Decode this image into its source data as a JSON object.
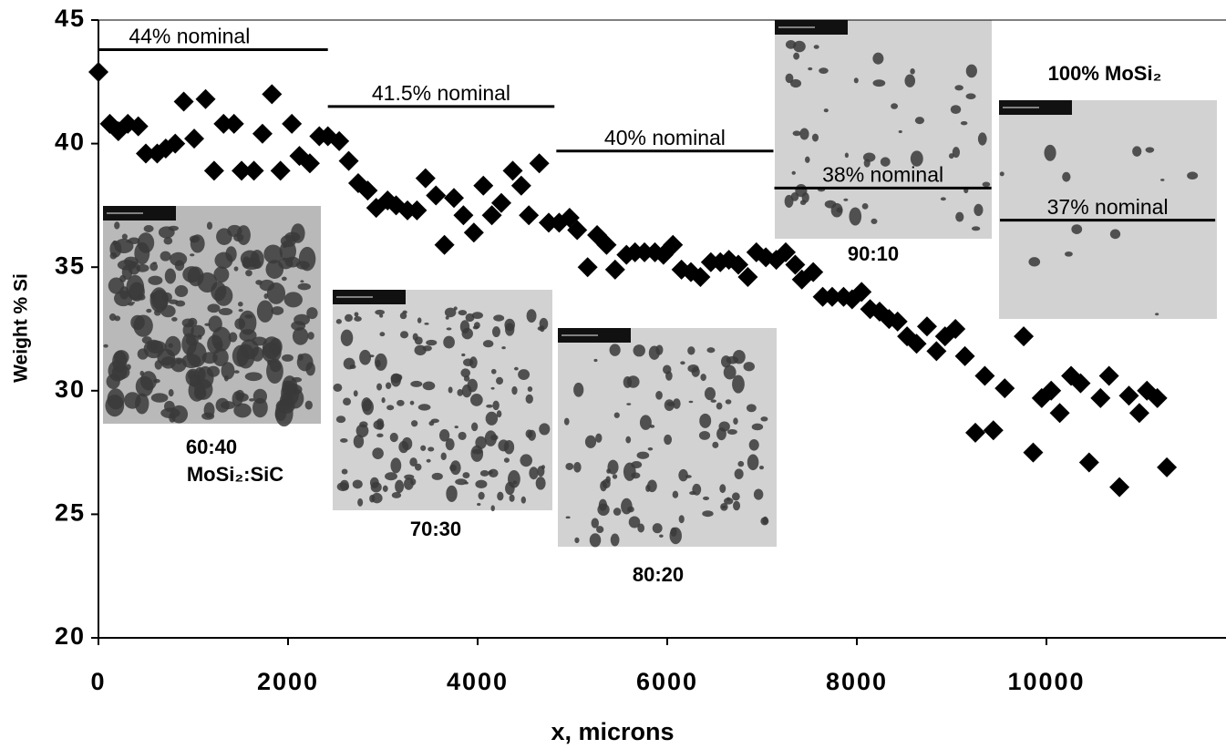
{
  "chart_data": {
    "type": "scatter",
    "x_label": "x, microns",
    "y_label": "Weight % Si",
    "xlim": [
      0,
      11894
    ],
    "ylim": [
      20,
      45
    ],
    "xticks": [
      0,
      2000,
      4000,
      6000,
      8000,
      10000
    ],
    "yticks": [
      20,
      25,
      30,
      35,
      40,
      45
    ],
    "series": [
      {
        "color": "#000000",
        "x": [
          0,
          120,
          210,
          310,
          420,
          500,
          620,
          710,
          810,
          900,
          1010,
          1130,
          1220,
          1320,
          1430,
          1510,
          1640,
          1730,
          1830,
          1920,
          2040,
          2120,
          2230,
          2330,
          2420,
          2540,
          2640,
          2740,
          2840,
          2930,
          3050,
          3140,
          3260,
          3360,
          3450,
          3560,
          3650,
          3750,
          3850,
          3960,
          4060,
          4150,
          4250,
          4370,
          4460,
          4540,
          4650,
          4750,
          4860,
          4970,
          5050,
          5160,
          5260,
          5360,
          5450,
          5570,
          5660,
          5760,
          5870,
          5960,
          6060,
          6150,
          6250,
          6350,
          6460,
          6560,
          6650,
          6750,
          6850,
          6940,
          7040,
          7150,
          7250,
          7350,
          7420,
          7540,
          7640,
          7740,
          7860,
          7950,
          8050,
          8140,
          8240,
          8340,
          8430,
          8530,
          8630,
          8740,
          8840,
          8930,
          9040,
          9140,
          9250,
          9350,
          9440,
          9560,
          9760,
          9860,
          9950,
          10050,
          10140,
          10260,
          10360,
          10450,
          10570,
          10660,
          10770,
          10870,
          10980,
          11060,
          11170,
          11270
        ],
        "values": [
          42.9,
          40.8,
          40.5,
          40.8,
          40.7,
          39.6,
          39.6,
          39.8,
          40.0,
          41.7,
          40.2,
          41.8,
          38.9,
          40.8,
          40.8,
          38.9,
          38.9,
          40.4,
          42.0,
          38.9,
          40.8,
          39.5,
          39.2,
          40.3,
          40.3,
          40.1,
          39.3,
          38.4,
          38.1,
          37.4,
          37.7,
          37.5,
          37.3,
          37.3,
          38.6,
          37.9,
          35.9,
          37.8,
          37.1,
          36.4,
          38.3,
          37.1,
          37.6,
          38.9,
          38.3,
          37.1,
          39.2,
          36.8,
          36.8,
          37.0,
          36.5,
          35.0,
          36.3,
          35.9,
          34.9,
          35.5,
          35.6,
          35.6,
          35.6,
          35.5,
          35.9,
          34.9,
          34.8,
          34.6,
          35.2,
          35.2,
          35.3,
          35.1,
          34.6,
          35.6,
          35.4,
          35.3,
          35.6,
          35.1,
          34.5,
          34.8,
          33.8,
          33.8,
          33.8,
          33.7,
          34.0,
          33.3,
          33.2,
          32.9,
          32.8,
          32.2,
          31.9,
          32.6,
          31.6,
          32.2,
          32.5,
          31.4,
          28.3,
          30.6,
          28.4,
          30.1,
          32.2,
          27.5,
          29.7,
          30.0,
          29.1,
          30.6,
          30.3,
          27.1,
          29.7,
          30.6,
          26.1,
          29.8,
          29.1,
          30.0,
          29.7,
          26.9
        ]
      }
    ],
    "nominal_lines": [
      {
        "label": "44% nominal",
        "x0": 0,
        "x1": 2420,
        "y": 43.8
      },
      {
        "label": "41.5% nominal",
        "x0": 2420,
        "x1": 4810,
        "y": 41.5
      },
      {
        "label": "40% nominal",
        "x0": 4830,
        "x1": 7120,
        "y": 39.7
      },
      {
        "label": "38% nominal",
        "x0": 7130,
        "x1": 9420,
        "y": 38.2
      },
      {
        "label": "37% nominal",
        "x0": 9510,
        "x1": 11780,
        "y": 36.9
      }
    ],
    "image_labels": [
      "60:40",
      "MoSi₂:SiC",
      "70:30",
      "80:20",
      "90:10",
      "100% MoSi₂"
    ]
  }
}
